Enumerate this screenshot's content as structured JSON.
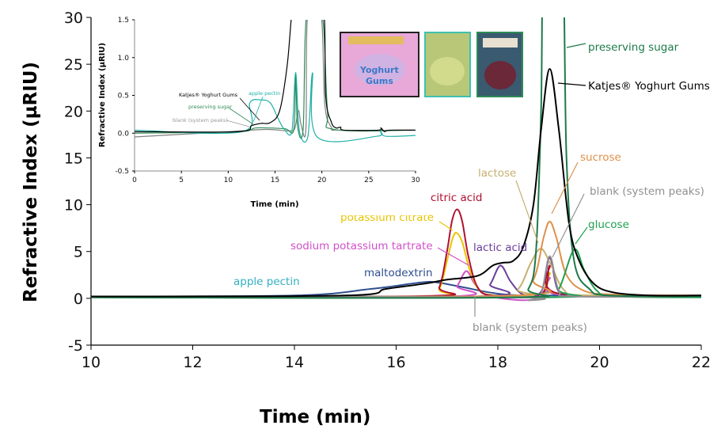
{
  "chart_data": [
    {
      "type": "line",
      "title": "",
      "xlabel": "Time (min)",
      "ylabel": "Refractive Index (µRIU)",
      "xlim": [
        10,
        22
      ],
      "ylim": [
        -5,
        30
      ],
      "xticks": [
        "10",
        "12",
        "14",
        "16",
        "18",
        "20",
        "22"
      ],
      "yticks": [
        "-5",
        "0",
        "5",
        "10",
        "15",
        "20",
        "25",
        "30"
      ],
      "grid": false,
      "series": [
        {
          "name": "apple pectin",
          "color": "#30b0c0",
          "points": [
            [
              10,
              0.2
            ],
            [
              17,
              0.2
            ],
            [
              18.6,
              0.3
            ],
            [
              19.0,
              0.7
            ],
            [
              19.4,
              0.3
            ],
            [
              22,
              0.2
            ]
          ]
        },
        {
          "name": "maltodextrin",
          "color": "#2f4f8f",
          "points": [
            [
              10,
              0.2
            ],
            [
              14,
              0.3
            ],
            [
              15.5,
              1
            ],
            [
              16.5,
              1.7
            ],
            [
              16.8,
              1.7
            ],
            [
              17.3,
              1.2
            ],
            [
              18,
              0.5
            ],
            [
              18.8,
              0.3
            ],
            [
              22,
              0.3
            ]
          ]
        },
        {
          "name": "sodium potassium tartrate",
          "color": "#d050c8",
          "points": [
            [
              10,
              0.2
            ],
            [
              17.0,
              0.2
            ],
            [
              17.2,
              1.3
            ],
            [
              17.38,
              2.9
            ],
            [
              17.55,
              1.5
            ],
            [
              17.8,
              0.3
            ],
            [
              18.5,
              -0.2
            ],
            [
              18.85,
              0.3
            ],
            [
              19.02,
              2.2
            ],
            [
              19.2,
              0.4
            ],
            [
              22,
              0.3
            ]
          ]
        },
        {
          "name": "potassium citrate",
          "color": "#e8c400",
          "points": [
            [
              10,
              0.2
            ],
            [
              16.6,
              0.2
            ],
            [
              16.85,
              1
            ],
            [
              17.0,
              4
            ],
            [
              17.1,
              6.2
            ],
            [
              17.18,
              7
            ],
            [
              17.3,
              6
            ],
            [
              17.45,
              3
            ],
            [
              17.65,
              0.8
            ],
            [
              18,
              0.3
            ],
            [
              18.85,
              0.4
            ],
            [
              19.02,
              2.7
            ],
            [
              19.2,
              0.5
            ],
            [
              22,
              0.3
            ]
          ]
        },
        {
          "name": "citric acid",
          "color": "#b01030",
          "points": [
            [
              10,
              0.2
            ],
            [
              16.6,
              0.25
            ],
            [
              16.85,
              1.2
            ],
            [
              17.0,
              5
            ],
            [
              17.1,
              8.3
            ],
            [
              17.2,
              9.5
            ],
            [
              17.3,
              8.2
            ],
            [
              17.42,
              4.5
            ],
            [
              17.6,
              1.2
            ],
            [
              17.9,
              0.3
            ],
            [
              18.85,
              0.4
            ],
            [
              19.02,
              3.5
            ],
            [
              19.2,
              0.5
            ],
            [
              22,
              0.3
            ]
          ]
        },
        {
          "name": "lactic acid",
          "color": "#6a3d9a",
          "points": [
            [
              10,
              0.2
            ],
            [
              17.6,
              0.2
            ],
            [
              17.85,
              1.5
            ],
            [
              18.05,
              3.5
            ],
            [
              18.25,
              1.8
            ],
            [
              18.5,
              0.4
            ],
            [
              18.85,
              0.7
            ],
            [
              19.02,
              4.3
            ],
            [
              19.2,
              0.7
            ],
            [
              19.6,
              0.3
            ],
            [
              22,
              0.3
            ]
          ]
        },
        {
          "name": "lactose",
          "color": "#c8b070",
          "points": [
            [
              10,
              0.2
            ],
            [
              18.0,
              0.2
            ],
            [
              18.4,
              1
            ],
            [
              18.65,
              3.8
            ],
            [
              18.85,
              5.3
            ],
            [
              19.05,
              3.5
            ],
            [
              19.3,
              0.9
            ],
            [
              19.7,
              0.3
            ],
            [
              22,
              0.3
            ]
          ]
        },
        {
          "name": "sucrose",
          "color": "#e0904a",
          "points": [
            [
              10,
              0.2
            ],
            [
              18.3,
              0.3
            ],
            [
              18.7,
              2
            ],
            [
              18.9,
              6.5
            ],
            [
              19.02,
              8.2
            ],
            [
              19.15,
              6.5
            ],
            [
              19.35,
              2.5
            ],
            [
              19.7,
              0.8
            ],
            [
              20.3,
              0.4
            ],
            [
              22,
              0.3
            ]
          ]
        },
        {
          "name": "glucose",
          "color": "#20a050",
          "points": [
            [
              10,
              0.1
            ],
            [
              18.9,
              0.1
            ],
            [
              19.2,
              1
            ],
            [
              19.5,
              5.2
            ],
            [
              19.7,
              3
            ],
            [
              19.95,
              0.8
            ],
            [
              20.3,
              0.2
            ],
            [
              22,
              0.1
            ]
          ]
        },
        {
          "name": "blank (system peaks)",
          "color": "#909090",
          "points": [
            [
              10,
              0.2
            ],
            [
              18.2,
              0.1
            ],
            [
              18.6,
              -0.2
            ],
            [
              18.85,
              0.5
            ],
            [
              19.02,
              4.5
            ],
            [
              19.2,
              0.8
            ],
            [
              19.5,
              0.2
            ],
            [
              22,
              0.2
            ]
          ]
        },
        {
          "name": "preserving sugar",
          "color": "#1e7a4a",
          "points": [
            [
              10,
              0.1
            ],
            [
              18.3,
              0.1
            ],
            [
              18.6,
              1
            ],
            [
              18.75,
              5
            ],
            [
              18.85,
              20
            ],
            [
              18.92,
              40
            ],
            [
              19.25,
              40
            ],
            [
              19.35,
              15
            ],
            [
              19.5,
              4
            ],
            [
              19.8,
              1
            ],
            [
              20.2,
              0.3
            ],
            [
              22,
              0.2
            ]
          ]
        },
        {
          "name": "Katjes® Yoghurt Gums",
          "color": "#000000",
          "points": [
            [
              10,
              0.2
            ],
            [
              15,
              0.3
            ],
            [
              15.8,
              1
            ],
            [
              16.6,
              1.6
            ],
            [
              17.0,
              2.0
            ],
            [
              17.6,
              2.4
            ],
            [
              17.9,
              3.5
            ],
            [
              18.1,
              3.8
            ],
            [
              18.3,
              4
            ],
            [
              18.5,
              5.5
            ],
            [
              18.7,
              10
            ],
            [
              18.85,
              18
            ],
            [
              19.02,
              24.5
            ],
            [
              19.2,
              18
            ],
            [
              19.4,
              8
            ],
            [
              19.6,
              4
            ],
            [
              19.9,
              1.5
            ],
            [
              20.3,
              0.6
            ],
            [
              21,
              0.3
            ],
            [
              22,
              0.3
            ]
          ]
        }
      ],
      "annotations": [
        "blank (system peaks)"
      ]
    },
    {
      "type": "line",
      "title": "",
      "xlabel": "Time (min)",
      "ylabel": "Refractive Index (µRIU)",
      "xlim": [
        0,
        30
      ],
      "ylim": [
        -0.5,
        1.5
      ],
      "xticks": [
        "0",
        "5",
        "10",
        "15",
        "20",
        "25",
        "30"
      ],
      "yticks": [
        "-0.5",
        "0.0",
        "0.5",
        "1.0",
        "1.5"
      ],
      "grid": false,
      "series": [
        {
          "name": "blank (system peaks)",
          "color": "#808080",
          "points": [
            [
              0,
              -0.05
            ],
            [
              10,
              0.02
            ],
            [
              14,
              0.05
            ],
            [
              16.5,
              0.03
            ],
            [
              17.1,
              0.06
            ],
            [
              17.5,
              0.3
            ],
            [
              17.8,
              0.1
            ],
            [
              18.3,
              0.06
            ],
            [
              18.5,
              1.6
            ],
            [
              19.9,
              1.6
            ],
            [
              20.3,
              0.4
            ],
            [
              21,
              0.08
            ],
            [
              22,
              0.04
            ],
            [
              30,
              0.04
            ]
          ]
        },
        {
          "name": "preserving sugar",
          "color": "#2e8b57",
          "points": [
            [
              0,
              0
            ],
            [
              11,
              0.02
            ],
            [
              13,
              0.07
            ],
            [
              16,
              0.06
            ],
            [
              17,
              0.05
            ],
            [
              17.2,
              0.8
            ],
            [
              17.4,
              0.1
            ],
            [
              18,
              0.06
            ],
            [
              18.4,
              1.6
            ],
            [
              20,
              1.6
            ],
            [
              20.6,
              0.3
            ],
            [
              21.3,
              0.05
            ],
            [
              30,
              0.04
            ]
          ]
        },
        {
          "name": "apple pectin",
          "color": "#20b0a8",
          "points": [
            [
              0,
              0.04
            ],
            [
              11.5,
              0.02
            ],
            [
              12.3,
              0.4
            ],
            [
              13.5,
              0.44
            ],
            [
              14.5,
              0.4
            ],
            [
              15.3,
              0.2
            ],
            [
              16,
              0.05
            ],
            [
              16.8,
              0.03
            ],
            [
              17.2,
              0.8
            ],
            [
              17.6,
              0.03
            ],
            [
              18.5,
              -0.05
            ],
            [
              19,
              0.8
            ],
            [
              19.5,
              -0.05
            ],
            [
              25.9,
              -0.04
            ],
            [
              26.2,
              0.03
            ],
            [
              26.8,
              -0.04
            ],
            [
              30,
              -0.03
            ]
          ]
        },
        {
          "name": "Katjes® Yoghurt Gums",
          "color": "#000000",
          "points": [
            [
              0,
              0.02
            ],
            [
              11,
              0.02
            ],
            [
              12.5,
              0.1
            ],
            [
              13.5,
              0.13
            ],
            [
              14.5,
              0.14
            ],
            [
              15.5,
              0.3
            ],
            [
              16.3,
              0.9
            ],
            [
              16.8,
              1.6
            ],
            [
              17.2,
              1.8
            ],
            [
              20,
              1.8
            ],
            [
              20.4,
              0.5
            ],
            [
              21,
              0.15
            ],
            [
              21.5,
              0.07
            ],
            [
              22,
              0.08
            ],
            [
              22.4,
              0.04
            ],
            [
              26,
              0.04
            ],
            [
              26.3,
              0.07
            ],
            [
              26.7,
              0.02
            ],
            [
              27.2,
              0.04
            ],
            [
              30,
              0.04
            ]
          ]
        }
      ]
    }
  ]
}
